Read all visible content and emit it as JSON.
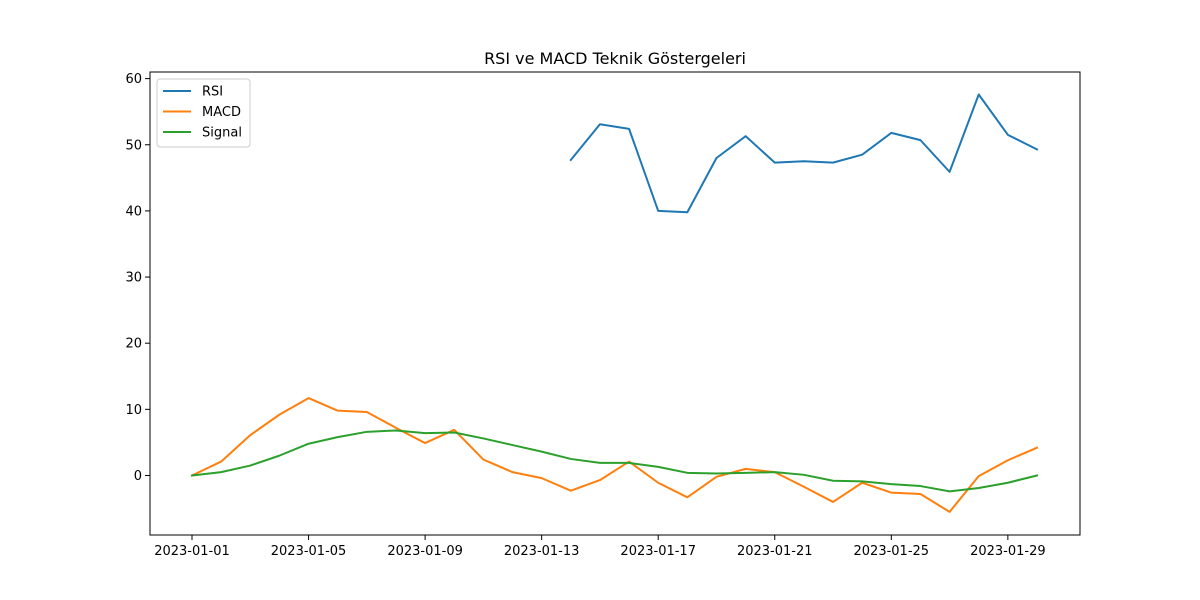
{
  "chart_data": {
    "type": "line",
    "title": "RSI ve MACD Teknik Göstergeleri",
    "xlabel": "",
    "ylabel": "",
    "x": [
      "2023-01-01",
      "2023-01-02",
      "2023-01-03",
      "2023-01-04",
      "2023-01-05",
      "2023-01-06",
      "2023-01-07",
      "2023-01-08",
      "2023-01-09",
      "2023-01-10",
      "2023-01-11",
      "2023-01-12",
      "2023-01-13",
      "2023-01-14",
      "2023-01-15",
      "2023-01-16",
      "2023-01-17",
      "2023-01-18",
      "2023-01-19",
      "2023-01-20",
      "2023-01-21",
      "2023-01-22",
      "2023-01-23",
      "2023-01-24",
      "2023-01-25",
      "2023-01-26",
      "2023-01-27",
      "2023-01-28",
      "2023-01-29",
      "2023-01-30"
    ],
    "x_ticks": [
      "2023-01-01",
      "2023-01-05",
      "2023-01-09",
      "2023-01-13",
      "2023-01-17",
      "2023-01-21",
      "2023-01-25",
      "2023-01-29"
    ],
    "y_ticks": [
      0,
      10,
      20,
      30,
      40,
      50,
      60
    ],
    "ylim": [
      -9,
      61
    ],
    "grid": false,
    "legend_position": "top-left",
    "series": [
      {
        "name": "RSI",
        "color": "#1f77b4",
        "values": [
          null,
          null,
          null,
          null,
          null,
          null,
          null,
          null,
          null,
          null,
          null,
          null,
          null,
          47.7,
          53.1,
          52.4,
          40.0,
          39.8,
          48.0,
          51.3,
          47.3,
          47.5,
          47.3,
          48.5,
          51.8,
          50.7,
          45.9,
          57.6,
          51.5,
          49.3
        ]
      },
      {
        "name": "MACD",
        "color": "#ff7f0e",
        "values": [
          0.0,
          2.1,
          6.1,
          9.2,
          11.7,
          9.8,
          9.6,
          7.2,
          4.9,
          6.9,
          2.4,
          0.5,
          -0.4,
          -2.3,
          -0.7,
          2.1,
          -1.1,
          -3.3,
          -0.2,
          1.0,
          0.5,
          -1.7,
          -4.0,
          -1.1,
          -2.6,
          -2.8,
          -5.5,
          -0.1,
          2.3,
          4.2
        ]
      },
      {
        "name": "Signal",
        "color": "#2ca02c",
        "values": [
          0.0,
          0.5,
          1.5,
          3.0,
          4.8,
          5.8,
          6.6,
          6.8,
          6.4,
          6.5,
          5.6,
          4.6,
          3.6,
          2.5,
          1.9,
          1.9,
          1.3,
          0.4,
          0.3,
          0.4,
          0.5,
          0.1,
          -0.8,
          -0.9,
          -1.3,
          -1.6,
          -2.4,
          -1.9,
          -1.1,
          0.0
        ]
      }
    ]
  }
}
